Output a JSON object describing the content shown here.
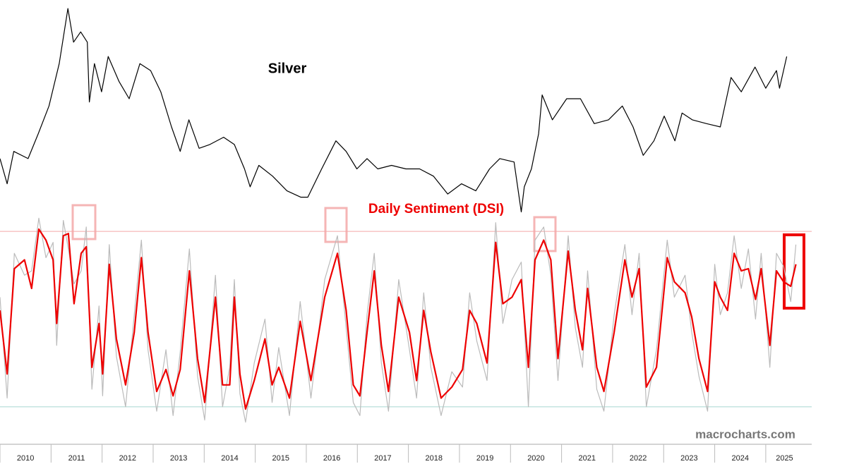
{
  "chart_data": [
    {
      "type": "line",
      "log": true,
      "xlim": [
        2010,
        2025.9
      ],
      "ylim": [
        11,
        50
      ],
      "x": [
        2010.0,
        2010.14,
        2010.27,
        2010.55,
        2010.75,
        2010.96,
        2011.16,
        2011.33,
        2011.44,
        2011.58,
        2011.71,
        2011.75,
        2011.85,
        2011.99,
        2012.12,
        2012.33,
        2012.53,
        2012.74,
        2012.95,
        2013.15,
        2013.36,
        2013.53,
        2013.7,
        2013.9,
        2014.11,
        2014.38,
        2014.59,
        2014.79,
        2014.9,
        2015.07,
        2015.34,
        2015.62,
        2015.89,
        2016.03,
        2016.3,
        2016.58,
        2016.78,
        2016.99,
        2017.19,
        2017.4,
        2017.67,
        2017.95,
        2018.22,
        2018.49,
        2018.77,
        2019.04,
        2019.32,
        2019.59,
        2019.79,
        2020.07,
        2020.21,
        2020.27,
        2020.41,
        2020.55,
        2020.62,
        2020.82,
        2021.1,
        2021.37,
        2021.64,
        2021.92,
        2022.19,
        2022.4,
        2022.6,
        2022.81,
        2023.01,
        2023.22,
        2023.36,
        2023.56,
        2023.84,
        2024.11,
        2024.32,
        2024.52,
        2024.79,
        2025.0,
        2025.21,
        2025.27,
        2025.41
      ],
      "series": [
        {
          "name": "Silver",
          "color": "#000000",
          "values": [
            17.5,
            14.7,
            18.4,
            17.5,
            20.8,
            25.2,
            33.8,
            49.5,
            39.2,
            42.1,
            39.2,
            25.9,
            33.8,
            27.8,
            35.5,
            29.9,
            26.5,
            33.8,
            32.2,
            27.8,
            21.8,
            18.4,
            22.9,
            18.8,
            19.3,
            20.3,
            19.3,
            16.3,
            14.4,
            16.7,
            15.5,
            14.0,
            13.4,
            13.4,
            16.3,
            19.8,
            18.4,
            16.3,
            17.5,
            16.3,
            16.7,
            16.3,
            16.3,
            15.5,
            13.7,
            14.7,
            14.0,
            16.3,
            17.5,
            17.1,
            12.1,
            14.4,
            16.3,
            20.8,
            27.2,
            22.9,
            26.5,
            26.5,
            22.3,
            22.9,
            25.2,
            21.8,
            17.9,
            19.8,
            23.5,
            19.8,
            24.0,
            22.9,
            22.3,
            21.8,
            30.7,
            27.8,
            33.0,
            28.5,
            32.2,
            28.5,
            35.5
          ]
        }
      ]
    },
    {
      "type": "line",
      "xlim": [
        2010,
        2025.9
      ],
      "ylim": [
        0,
        100
      ],
      "xticks": [
        2010,
        2011,
        2012,
        2013,
        2014,
        2015,
        2016,
        2017,
        2018,
        2019,
        2020,
        2021,
        2022,
        2023,
        2024,
        2025
      ],
      "reference_lines": [
        {
          "value": 90,
          "color": "#f4a6a6"
        },
        {
          "value": 10,
          "color": "#a8d8d0"
        }
      ],
      "x": [
        2010.0,
        2010.14,
        2010.28,
        2010.48,
        2010.62,
        2010.76,
        2010.9,
        2011.04,
        2011.11,
        2011.24,
        2011.34,
        2011.45,
        2011.59,
        2011.69,
        2011.8,
        2011.94,
        2012.01,
        2012.14,
        2012.28,
        2012.46,
        2012.63,
        2012.77,
        2012.9,
        2013.07,
        2013.25,
        2013.39,
        2013.53,
        2013.71,
        2013.87,
        2014.01,
        2014.22,
        2014.36,
        2014.5,
        2014.59,
        2014.7,
        2014.81,
        2014.98,
        2015.19,
        2015.33,
        2015.46,
        2015.67,
        2015.88,
        2016.09,
        2016.36,
        2016.61,
        2016.78,
        2016.92,
        2017.05,
        2017.19,
        2017.33,
        2017.47,
        2017.61,
        2017.81,
        2018.02,
        2018.16,
        2018.3,
        2018.44,
        2018.64,
        2018.85,
        2019.06,
        2019.2,
        2019.34,
        2019.54,
        2019.71,
        2019.85,
        2020.03,
        2020.21,
        2020.35,
        2020.48,
        2020.65,
        2020.79,
        2020.93,
        2021.13,
        2021.27,
        2021.41,
        2021.51,
        2021.69,
        2021.83,
        2022.03,
        2022.24,
        2022.38,
        2022.52,
        2022.66,
        2022.86,
        2023.07,
        2023.21,
        2023.42,
        2023.55,
        2023.69,
        2023.86,
        2024.0,
        2024.11,
        2024.25,
        2024.38,
        2024.52,
        2024.66,
        2024.8,
        2024.91,
        2025.08,
        2025.21,
        2025.35,
        2025.49,
        2025.59
      ],
      "series": [
        {
          "name": "Daily Sentiment (DSI)",
          "color": "#ee0000",
          "values": [
            54,
            25,
            73,
            77,
            64,
            91,
            86,
            77,
            48,
            88,
            89,
            57,
            80,
            83,
            28,
            48,
            25,
            75,
            41,
            20,
            44,
            78,
            44,
            17,
            27,
            15,
            27,
            72,
            32,
            12,
            60,
            20,
            20,
            60,
            25,
            9,
            22,
            41,
            20,
            28,
            14,
            49,
            22,
            60,
            80,
            54,
            20,
            15,
            44,
            72,
            38,
            17,
            60,
            44,
            22,
            54,
            35,
            14,
            19,
            27,
            54,
            48,
            30,
            85,
            57,
            60,
            68,
            28,
            77,
            86,
            77,
            32,
            81,
            54,
            36,
            64,
            28,
            17,
            44,
            77,
            60,
            73,
            19,
            28,
            78,
            67,
            62,
            51,
            32,
            17,
            67,
            60,
            54,
            80,
            72,
            73,
            59,
            73,
            38,
            72,
            67,
            65,
            75
          ]
        },
        {
          "color": "#bbbbbb",
          "values": [
            60,
            14,
            80,
            70,
            72,
            96,
            78,
            85,
            38,
            95,
            82,
            66,
            72,
            92,
            18,
            56,
            15,
            84,
            33,
            10,
            52,
            86,
            36,
            8,
            36,
            6,
            35,
            82,
            24,
            4,
            70,
            10,
            28,
            68,
            16,
            3,
            30,
            50,
            12,
            37,
            6,
            58,
            14,
            68,
            88,
            46,
            12,
            6,
            52,
            80,
            30,
            8,
            68,
            36,
            14,
            62,
            28,
            6,
            26,
            19,
            62,
            40,
            22,
            94,
            48,
            68,
            76,
            10,
            86,
            92,
            70,
            22,
            88,
            46,
            28,
            72,
            18,
            8,
            52,
            84,
            52,
            80,
            10,
            36,
            86,
            60,
            70,
            44,
            24,
            8,
            75,
            52,
            62,
            88,
            64,
            82,
            50,
            80,
            28,
            80,
            74,
            58,
            84
          ]
        }
      ]
    }
  ],
  "watermark": "macrocharts.com"
}
